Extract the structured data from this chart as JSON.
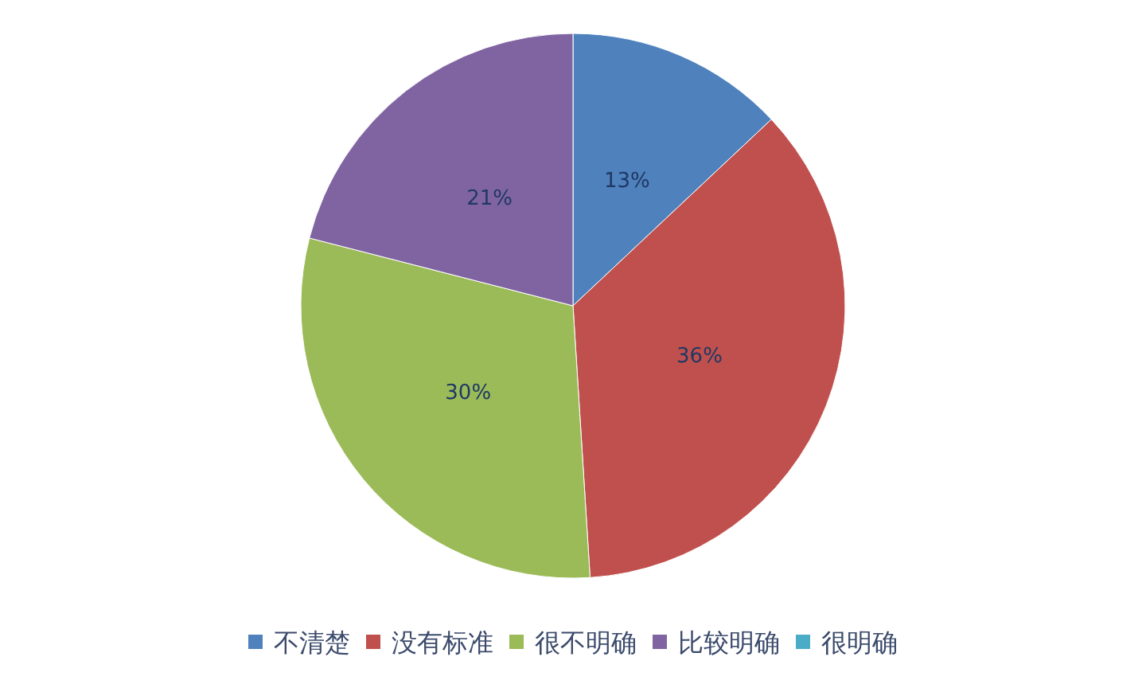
{
  "chart_data": {
    "type": "pie",
    "categories": [
      "不清楚",
      "没有标准",
      "很不明确",
      "比较明确",
      "很明确"
    ],
    "values": [
      13,
      36,
      30,
      21,
      0
    ],
    "colors": [
      "#4f81bd",
      "#c0504d",
      "#9bbb59",
      "#8064a2",
      "#4bacc6"
    ],
    "value_labels": [
      "13%",
      "36%",
      "30%",
      "21%",
      null
    ],
    "legend": "bottom"
  }
}
